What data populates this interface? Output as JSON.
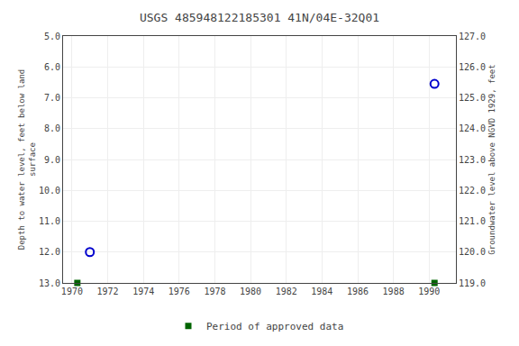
{
  "chart_data": {
    "type": "scatter",
    "title": "USGS 485948122185301 41N/04E-32Q01",
    "ylabel": "Depth to water level, feet below land\nsurface",
    "y2label": "Groundwater level above NGVD 1929, feet",
    "series": [
      {
        "x": [
          1971.0,
          1990.3
        ],
        "values": [
          12.0,
          6.55
        ],
        "color": "#0000cd",
        "marker": "open_circle"
      },
      {
        "name": "Period of approved data",
        "x": [
          1970.3,
          1990.3
        ],
        "values": [
          13.0,
          13.0
        ],
        "color": "#006400",
        "marker": "square"
      }
    ],
    "xlim": [
      1969.5,
      1991.5
    ],
    "xticks": [
      1970,
      1972,
      1974,
      1976,
      1978,
      1980,
      1982,
      1984,
      1986,
      1988,
      1990
    ],
    "ylim": [
      13.0,
      5.0
    ],
    "yticks": [
      {
        "value": 5.0,
        "label": "5.0"
      },
      {
        "value": 6.0,
        "label": "6.0"
      },
      {
        "value": 7.0,
        "label": "7.0"
      },
      {
        "value": 8.0,
        "label": "8.0"
      },
      {
        "value": 9.0,
        "label": "9.0"
      },
      {
        "value": 10.0,
        "label": "10.0"
      },
      {
        "value": 11.0,
        "label": "11.0"
      },
      {
        "value": 12.0,
        "label": "12.0"
      },
      {
        "value": 13.0,
        "label": "13.0"
      }
    ],
    "y2lim": [
      119.0,
      127.0
    ],
    "y2ticks": [
      {
        "value": 127.0,
        "label": "127.0"
      },
      {
        "value": 126.0,
        "label": "126.0"
      },
      {
        "value": 125.0,
        "label": "125.0"
      },
      {
        "value": 124.0,
        "label": "124.0"
      },
      {
        "value": 123.0,
        "label": "123.0"
      },
      {
        "value": 122.0,
        "label": "122.0"
      },
      {
        "value": 121.0,
        "label": "121.0"
      },
      {
        "value": 120.0,
        "label": "120.0"
      },
      {
        "value": 119.0,
        "label": "119.0"
      }
    ],
    "grid": true,
    "legend": "bottom"
  }
}
